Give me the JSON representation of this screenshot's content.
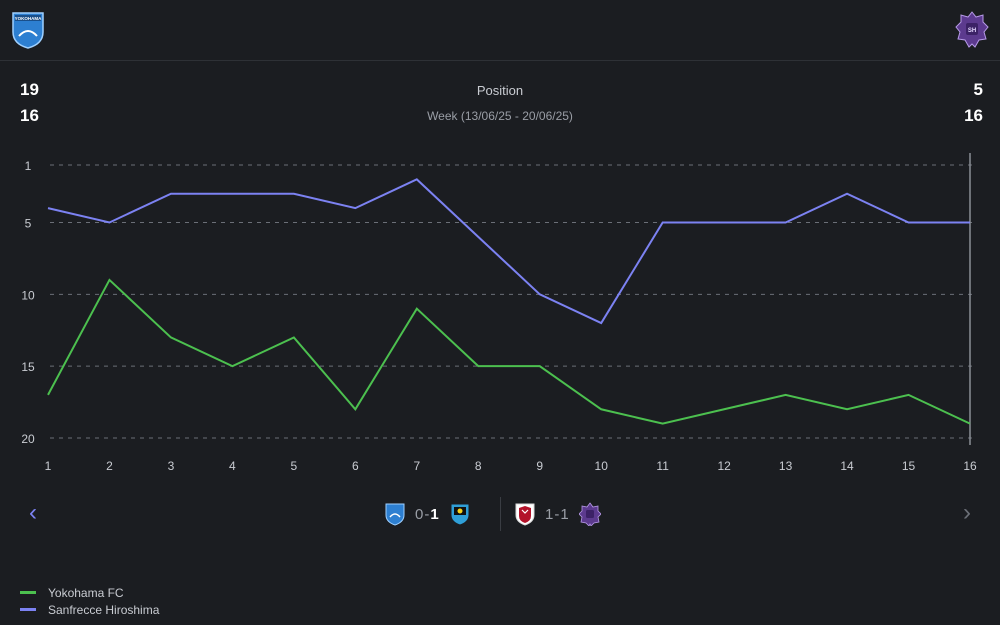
{
  "header": {
    "home_crest": "yokohama-fc-crest",
    "away_crest": "sanfrecce-hiroshima-crest",
    "home_crest_text": "YOKOHAMA",
    "away_crest_text": "SH"
  },
  "stats": {
    "home_position": "19",
    "home_week": "16",
    "away_position": "5",
    "away_week": "16",
    "label": "Position",
    "week_range": "Week (13/06/25 - 20/06/25)"
  },
  "colors": {
    "home": "#4cc04f",
    "away": "#7c82f2",
    "grid": "#6b6f77",
    "background": "#1b1d21"
  },
  "chart_data": {
    "type": "line",
    "title": "Position",
    "x": [
      1,
      2,
      3,
      4,
      5,
      6,
      7,
      8,
      9,
      10,
      11,
      12,
      13,
      14,
      15,
      16
    ],
    "y_ticks": [
      1,
      5,
      10,
      15,
      20
    ],
    "ylim": [
      1,
      20
    ],
    "y_inverted": true,
    "series": [
      {
        "name": "Yokohama FC",
        "color": "#4cc04f",
        "values": [
          17,
          9,
          13,
          15,
          13,
          18,
          11,
          15,
          15,
          18,
          19,
          18,
          17,
          18,
          17,
          19
        ]
      },
      {
        "name": "Sanfrecce Hiroshima",
        "color": "#7c82f2",
        "values": [
          4,
          5,
          3,
          3,
          3,
          4,
          2,
          6,
          10,
          12,
          5,
          5,
          5,
          3,
          5,
          5
        ]
      }
    ],
    "highlight_x": 16
  },
  "nav": {
    "prev_icon": "‹",
    "next_icon": "›"
  },
  "matches": [
    {
      "home": "yokohama-fc",
      "away": "kawasaki-frontale",
      "home_score": "0",
      "away_score": "1",
      "sep": "-"
    },
    {
      "home": "kashima-antlers",
      "away": "sanfrecce-hiroshima",
      "home_score": "1",
      "away_score": "1",
      "sep": "-"
    }
  ],
  "legend": [
    {
      "name": "Yokohama FC",
      "color": "#4cc04f"
    },
    {
      "name": "Sanfrecce Hiroshima",
      "color": "#7c82f2"
    }
  ]
}
